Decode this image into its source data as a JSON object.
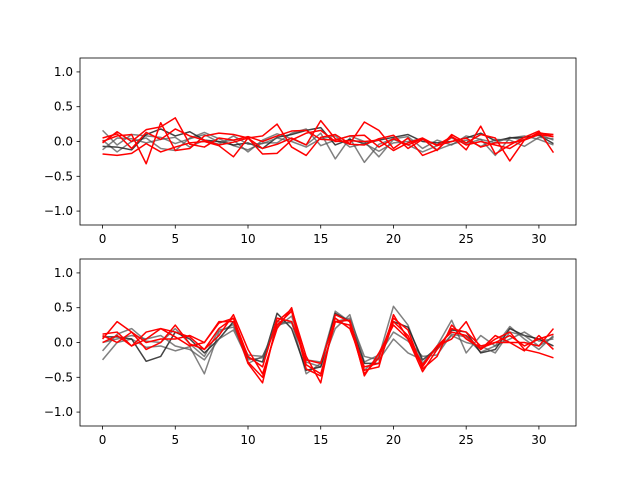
{
  "chart_data": [
    {
      "type": "line",
      "title": "",
      "xlabel": "",
      "ylabel": "",
      "xlim": [
        -1.55,
        32.55
      ],
      "ylim": [
        -1.2,
        1.2
      ],
      "xticks": [
        0,
        5,
        10,
        15,
        20,
        25,
        30
      ],
      "yticks": [
        -1.0,
        -0.5,
        0.0,
        0.5,
        1.0
      ],
      "ytick_labels": [
        "−1.0",
        "−0.5",
        "0.0",
        "0.5",
        "1.0"
      ],
      "grid": false,
      "legend": "none",
      "x": [
        0,
        1,
        2,
        3,
        4,
        5,
        6,
        7,
        8,
        9,
        10,
        11,
        12,
        13,
        14,
        15,
        16,
        17,
        18,
        19,
        20,
        21,
        22,
        23,
        24,
        25,
        26,
        27,
        28,
        29,
        30,
        31
      ],
      "series": [
        {
          "color": "#555555",
          "alpha": 0.75,
          "values": [
            0.16,
            -0.05,
            0.1,
            0.08,
            0.06,
            -0.03,
            0.04,
            0.1,
            -0.01,
            0.02,
            -0.15,
            0.02,
            0.11,
            0.04,
            -0.05,
            0.12,
            -0.25,
            0.05,
            -0.3,
            -0.04,
            0.04,
            0.07,
            -0.1,
            0.02,
            -0.05,
            0.08,
            0.03,
            -0.02,
            0.06,
            0.02,
            0.1,
            0.02
          ]
        },
        {
          "color": "#555555",
          "alpha": 0.75,
          "values": [
            0.02,
            -0.15,
            0.0,
            0.05,
            -0.1,
            -0.13,
            0.05,
            0.13,
            0.04,
            -0.06,
            -0.12,
            -0.02,
            -0.02,
            0.12,
            0.18,
            -0.06,
            0.02,
            0.08,
            0.0,
            -0.22,
            0.03,
            -0.05,
            -0.15,
            -0.06,
            0.05,
            -0.03,
            0.03,
            -0.2,
            0.05,
            0.08,
            0.03,
            -0.05
          ]
        },
        {
          "color": "#222222",
          "alpha": 0.85,
          "values": [
            -0.07,
            -0.08,
            -0.12,
            0.1,
            0.18,
            0.08,
            0.14,
            0.02,
            0.0,
            -0.05,
            -0.02,
            -0.1,
            0.06,
            0.1,
            0.16,
            0.2,
            -0.05,
            0.03,
            -0.03,
            0.02,
            0.06,
            0.1,
            0.0,
            -0.02,
            0.0,
            0.05,
            0.12,
            0.01,
            0.05,
            0.06,
            0.09,
            -0.03
          ]
        },
        {
          "color": "#555555",
          "alpha": 0.75,
          "values": [
            -0.12,
            0.05,
            0.04,
            -0.02,
            0.03,
            0.06,
            -0.08,
            0.02,
            -0.04,
            0.08,
            -0.04,
            -0.03,
            0.05,
            0.0,
            -0.08,
            0.04,
            0.08,
            -0.08,
            -0.03,
            -0.14,
            -0.02,
            0.0,
            0.04,
            -0.12,
            -0.04,
            0.02,
            -0.07,
            0.03,
            0.02,
            -0.07,
            0.06,
            0.04
          ]
        },
        {
          "color": "#ff0000",
          "alpha": 1.0,
          "values": [
            -0.18,
            -0.2,
            -0.17,
            -0.03,
            -0.15,
            -0.08,
            -0.02,
            0.0,
            -0.06,
            -0.22,
            0.05,
            -0.18,
            -0.17,
            0.02,
            0.12,
            0.16,
            0.0,
            0.01,
            0.0,
            0.02,
            -0.13,
            -0.02,
            0.05,
            -0.06,
            0.0,
            0.05,
            -0.08,
            -0.02,
            -0.02,
            0.02,
            0.13,
            0.07
          ]
        },
        {
          "color": "#ff0000",
          "alpha": 1.0,
          "values": [
            -0.02,
            0.14,
            0.0,
            0.17,
            0.21,
            0.34,
            -0.04,
            -0.08,
            0.05,
            0.02,
            0.07,
            0.0,
            0.08,
            0.15,
            0.16,
            0.03,
            0.02,
            0.08,
            0.09,
            -0.08,
            0.04,
            -0.05,
            0.04,
            -0.13,
            0.1,
            -0.02,
            0.1,
            0.05,
            -0.28,
            0.02,
            0.1,
            0.07
          ]
        },
        {
          "color": "#ff0000",
          "alpha": 1.0,
          "values": [
            0.0,
            0.08,
            0.1,
            -0.32,
            0.27,
            -0.13,
            -0.1,
            0.08,
            0.12,
            0.1,
            0.05,
            0.08,
            0.25,
            -0.08,
            -0.2,
            0.06,
            0.1,
            -0.03,
            0.28,
            0.16,
            -0.1,
            0.05,
            -0.2,
            -0.12,
            0.07,
            -0.12,
            0.22,
            -0.18,
            -0.05,
            0.06,
            0.15,
            -0.16
          ]
        },
        {
          "color": "#ff0000",
          "alpha": 1.0,
          "values": [
            0.05,
            0.11,
            -0.1,
            0.13,
            0.03,
            0.18,
            0.08,
            0.02,
            -0.05,
            -0.01,
            0.05,
            -0.1,
            -0.04,
            0.05,
            -0.05,
            0.3,
            0.04,
            -0.04,
            -0.05,
            0.04,
            0.09,
            -0.1,
            0.03,
            -0.05,
            0.07,
            -0.05,
            0.0,
            -0.05,
            -0.1,
            0.03,
            0.12,
            0.1
          ]
        }
      ]
    },
    {
      "type": "line",
      "title": "",
      "xlabel": "",
      "ylabel": "",
      "xlim": [
        -1.55,
        32.55
      ],
      "ylim": [
        -1.2,
        1.2
      ],
      "xticks": [
        0,
        5,
        10,
        15,
        20,
        25,
        30
      ],
      "yticks": [
        -1.0,
        -0.5,
        0.0,
        0.5,
        1.0
      ],
      "ytick_labels": [
        "−1.0",
        "−0.5",
        "0.0",
        "0.5",
        "1.0"
      ],
      "grid": false,
      "legend": "none",
      "x": [
        0,
        1,
        2,
        3,
        4,
        5,
        6,
        7,
        8,
        9,
        10,
        11,
        12,
        13,
        14,
        15,
        16,
        17,
        18,
        19,
        20,
        21,
        22,
        23,
        24,
        25,
        26,
        27,
        28,
        29,
        30,
        31
      ],
      "series": [
        {
          "color": "#555555",
          "alpha": 0.75,
          "values": [
            -0.25,
            0.0,
            0.05,
            -0.07,
            -0.05,
            -0.12,
            -0.06,
            -0.45,
            0.15,
            0.26,
            -0.3,
            -0.2,
            0.25,
            0.3,
            -0.45,
            -0.3,
            0.45,
            0.3,
            -0.4,
            -0.2,
            0.52,
            0.25,
            -0.3,
            -0.05,
            0.32,
            -0.15,
            0.1,
            -0.05,
            0.23,
            0.05,
            -0.1,
            0.1
          ]
        },
        {
          "color": "#555555",
          "alpha": 0.75,
          "values": [
            -0.12,
            0.12,
            0.2,
            0.02,
            0.0,
            0.2,
            -0.02,
            -0.2,
            0.18,
            0.22,
            -0.18,
            -0.2,
            0.22,
            0.38,
            -0.28,
            -0.35,
            0.2,
            0.4,
            -0.28,
            -0.18,
            0.15,
            0.02,
            -0.2,
            -0.18,
            0.12,
            0.08,
            -0.14,
            -0.05,
            0.05,
            0.15,
            0.02,
            0.05
          ]
        },
        {
          "color": "#222222",
          "alpha": 0.85,
          "values": [
            0.08,
            0.08,
            0.05,
            -0.27,
            -0.2,
            0.15,
            0.05,
            -0.15,
            0.05,
            0.3,
            -0.22,
            -0.28,
            0.42,
            0.2,
            -0.4,
            -0.35,
            0.42,
            0.3,
            -0.3,
            -0.3,
            0.3,
            0.22,
            -0.25,
            -0.08,
            0.18,
            0.15,
            -0.15,
            -0.1,
            0.2,
            0.1,
            0.05,
            -0.05
          ]
        },
        {
          "color": "#555555",
          "alpha": 0.75,
          "values": [
            0.0,
            0.05,
            0.1,
            0.05,
            0.1,
            -0.05,
            -0.1,
            -0.25,
            0.05,
            0.18,
            -0.25,
            -0.22,
            0.3,
            0.28,
            -0.25,
            -0.28,
            0.3,
            0.35,
            -0.2,
            -0.25,
            0.05,
            -0.15,
            -0.25,
            -0.1,
            0.1,
            0.0,
            -0.05,
            -0.15,
            0.15,
            0.1,
            -0.05,
            0.08
          ]
        },
        {
          "color": "#ff0000",
          "alpha": 1.0,
          "values": [
            0.1,
            0.0,
            0.15,
            0.0,
            0.05,
            0.05,
            0.1,
            0.0,
            0.3,
            0.3,
            -0.3,
            -0.58,
            0.3,
            0.48,
            -0.2,
            -0.58,
            0.4,
            0.3,
            -0.48,
            -0.15,
            0.25,
            0.05,
            -0.42,
            -0.1,
            0.2,
            0.15,
            -0.05,
            0.0,
            0.1,
            -0.05,
            0.05,
            0.12
          ]
        },
        {
          "color": "#ff0000",
          "alpha": 1.0,
          "values": [
            0.05,
            0.3,
            0.15,
            -0.1,
            0.0,
            0.25,
            -0.02,
            -0.1,
            0.1,
            0.4,
            -0.1,
            -0.45,
            0.2,
            0.5,
            -0.32,
            -0.45,
            0.3,
            0.32,
            -0.4,
            -0.35,
            0.4,
            0.05,
            -0.35,
            -0.05,
            0.05,
            0.3,
            -0.1,
            0.05,
            0.15,
            -0.1,
            -0.15,
            -0.22
          ]
        },
        {
          "color": "#ff0000",
          "alpha": 1.0,
          "values": [
            0.12,
            0.15,
            -0.05,
            0.15,
            0.2,
            0.08,
            -0.05,
            0.0,
            0.28,
            0.35,
            -0.2,
            -0.35,
            0.35,
            0.3,
            -0.25,
            -0.3,
            0.35,
            0.2,
            -0.35,
            -0.3,
            0.3,
            0.1,
            -0.32,
            -0.05,
            0.15,
            0.1,
            -0.1,
            0.1,
            0.0,
            0.0,
            -0.05,
            0.2
          ]
        },
        {
          "color": "#ff0000",
          "alpha": 1.0,
          "values": [
            0.0,
            0.1,
            -0.05,
            0.05,
            0.2,
            0.15,
            0.08,
            -0.1,
            0.2,
            0.35,
            -0.28,
            -0.5,
            0.25,
            0.45,
            -0.38,
            -0.48,
            0.3,
            0.25,
            -0.45,
            -0.22,
            0.35,
            0.18,
            -0.38,
            -0.2,
            0.25,
            0.05,
            -0.08,
            0.0,
            0.0,
            -0.12,
            0.1,
            -0.1
          ]
        }
      ]
    }
  ]
}
